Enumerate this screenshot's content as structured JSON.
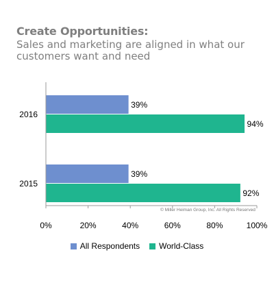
{
  "header": {
    "title": "Create Opportunities:",
    "subtitle": "Sales and marketing are aligned in what our customers want and need"
  },
  "copyright": "© Miller Heiman Group, Inc. All Rights Reserved",
  "chart_data": {
    "type": "bar",
    "orientation": "horizontal",
    "categories": [
      "2016",
      "2015"
    ],
    "series": [
      {
        "name": "All Respondents",
        "color": "#6e8fcf",
        "values": [
          39,
          39
        ],
        "labels": [
          "39%",
          "39%"
        ]
      },
      {
        "name": "World-Class",
        "color": "#1fb58f",
        "values": [
          94,
          92
        ],
        "labels": [
          "94%",
          "92%"
        ]
      }
    ],
    "xlim": [
      0,
      100
    ],
    "xticks": [
      0,
      20,
      40,
      60,
      80,
      100
    ],
    "xtick_labels": [
      "0%",
      "20%",
      "40%",
      "60%",
      "80%",
      "100%"
    ],
    "grid": false,
    "legend": "bottom"
  }
}
